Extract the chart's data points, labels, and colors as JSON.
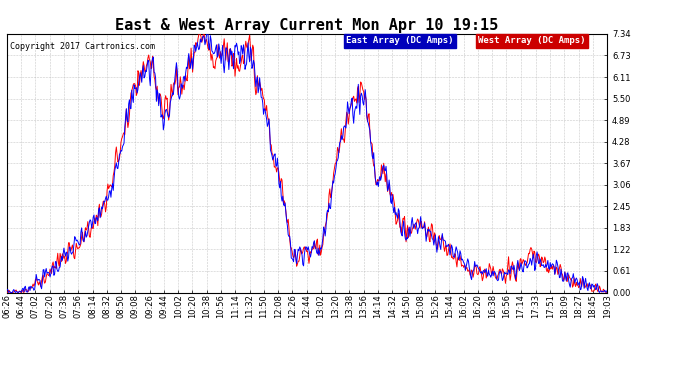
{
  "title": "East & West Array Current Mon Apr 10 19:15",
  "copyright": "Copyright 2017 Cartronics.com",
  "legend_east": "East Array (DC Amps)",
  "legend_west": "West Array (DC Amps)",
  "east_color": "#0000FF",
  "west_color": "#FF0000",
  "east_legend_bg": "#0000BB",
  "west_legend_bg": "#CC0000",
  "legend_text_color": "#FFFFFF",
  "background_color": "#FFFFFF",
  "plot_bg_color": "#FFFFFF",
  "grid_color": "#BBBBBB",
  "yticks": [
    0.0,
    0.61,
    1.22,
    1.83,
    2.45,
    3.06,
    3.67,
    4.28,
    4.89,
    5.5,
    6.11,
    6.73,
    7.34
  ],
  "ymax": 7.34,
  "ymin": 0.0,
  "x_labels": [
    "06:26",
    "06:44",
    "07:02",
    "07:20",
    "07:38",
    "07:56",
    "08:14",
    "08:32",
    "08:50",
    "09:08",
    "09:26",
    "09:44",
    "10:02",
    "10:20",
    "10:38",
    "10:56",
    "11:14",
    "11:32",
    "11:50",
    "12:08",
    "12:26",
    "12:44",
    "13:02",
    "13:20",
    "13:38",
    "13:56",
    "14:14",
    "14:32",
    "14:50",
    "15:08",
    "15:26",
    "15:44",
    "16:02",
    "16:20",
    "16:38",
    "16:56",
    "17:14",
    "17:33",
    "17:51",
    "18:09",
    "18:27",
    "18:45",
    "19:03"
  ],
  "title_fontsize": 11,
  "tick_fontsize": 6,
  "copyright_fontsize": 6
}
